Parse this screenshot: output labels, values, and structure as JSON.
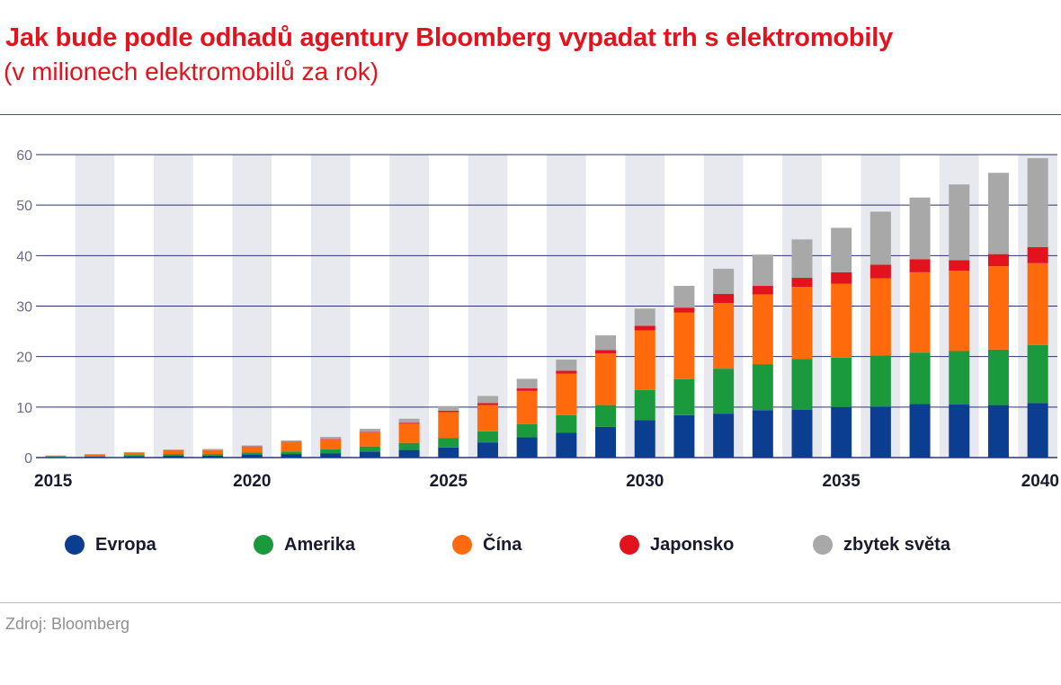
{
  "header": {
    "title": "Jak bude podle odhadů agentury Bloomberg vypadat trh s elektromobily",
    "subtitle": "(v milionech elektromobilů za rok)"
  },
  "footer": {
    "source": "Zdroj: Bloomberg"
  },
  "colors": {
    "title": "#e2131d",
    "Evropa": "#0b3d91",
    "Amerika": "#1a9a3c",
    "Čína": "#ff6a0d",
    "Japonsko": "#e2131d",
    "zbytek světa": "#a8a8a8",
    "stripe": "#e8e8ef",
    "grid": "#2a3570"
  },
  "chart_data": {
    "type": "bar",
    "stacked": true,
    "title": "Jak bude podle odhadů agentury Bloomberg vypadat trh s elektromobily",
    "subtitle": "(v milionech elektromobilů za rok)",
    "categories": [
      2015,
      2016,
      2017,
      2018,
      2019,
      2020,
      2021,
      2022,
      2023,
      2024,
      2025,
      2026,
      2027,
      2028,
      2029,
      2030,
      2031,
      2032,
      2033,
      2034,
      2035,
      2036,
      2037,
      2038,
      2039,
      2040
    ],
    "x_tick_labels": [
      "2015",
      "2020",
      "2025",
      "2030",
      "2035",
      "2040"
    ],
    "y_ticks": [
      0,
      10,
      20,
      30,
      40,
      50,
      60
    ],
    "ylim": [
      0,
      60
    ],
    "grid": true,
    "legend_position": "bottom",
    "series": [
      {
        "name": "Evropa",
        "values": [
          0.1,
          0.2,
          0.3,
          0.4,
          0.4,
          0.6,
          0.7,
          0.8,
          1.2,
          1.5,
          2.0,
          3.0,
          4.0,
          4.9,
          6.1,
          7.4,
          8.4,
          8.7,
          9.4,
          9.5,
          10.0,
          10.1,
          10.6,
          10.5,
          10.4,
          10.8
        ]
      },
      {
        "name": "Amerika",
        "values": [
          0.1,
          0.1,
          0.2,
          0.3,
          0.3,
          0.4,
          0.5,
          0.8,
          1.0,
          1.4,
          1.9,
          2.2,
          2.6,
          3.5,
          4.3,
          6.0,
          7.1,
          8.9,
          9.1,
          10.0,
          9.8,
          10.1,
          10.2,
          10.6,
          11.0,
          11.5
        ]
      },
      {
        "name": "Čína",
        "values": [
          0.2,
          0.3,
          0.5,
          0.8,
          0.8,
          1.1,
          1.8,
          2.0,
          2.8,
          3.8,
          5.1,
          5.2,
          6.6,
          8.2,
          10.2,
          11.8,
          13.2,
          13.0,
          13.8,
          14.3,
          14.6,
          15.3,
          15.9,
          15.9,
          16.5,
          16.2
        ]
      },
      {
        "name": "Japonsko",
        "values": [
          0.0,
          0.0,
          0.0,
          0.0,
          0.0,
          0.1,
          0.1,
          0.1,
          0.1,
          0.2,
          0.3,
          0.4,
          0.5,
          0.6,
          0.7,
          0.9,
          1.0,
          1.8,
          1.7,
          1.8,
          2.3,
          2.7,
          2.6,
          2.1,
          2.4,
          3.2
        ]
      },
      {
        "name": "zbytek světa",
        "values": [
          0.0,
          0.1,
          0.1,
          0.1,
          0.2,
          0.2,
          0.3,
          0.4,
          0.6,
          0.8,
          0.9,
          1.4,
          1.9,
          2.2,
          2.9,
          3.4,
          4.3,
          5.0,
          6.2,
          7.6,
          8.8,
          10.5,
          12.2,
          15.0,
          16.1,
          17.6
        ]
      }
    ]
  }
}
